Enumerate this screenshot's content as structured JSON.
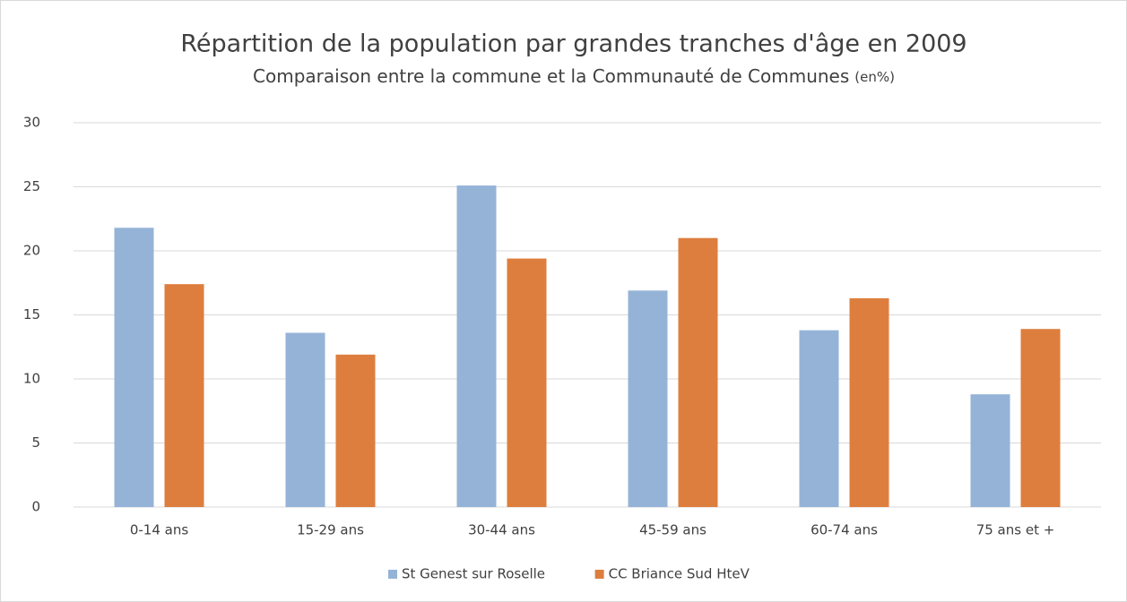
{
  "chart_data": {
    "type": "bar",
    "title": "Répartition de la population par grandes tranches d'âge en 2009",
    "subtitle": "Comparaison entre la commune et la Communauté de Communes",
    "subtitle_unit": "(en%)",
    "categories": [
      "0-14 ans",
      "15-29 ans",
      "30-44 ans",
      "45-59 ans",
      "60-74 ans",
      "75 ans et +"
    ],
    "series": [
      {
        "name": "St Genest sur Roselle",
        "color": "#95b3d7",
        "values": [
          21.8,
          13.6,
          25.1,
          16.9,
          13.8,
          8.8
        ]
      },
      {
        "name": "CC Briance Sud HteV",
        "color": "#dd7e3e",
        "values": [
          17.4,
          11.9,
          19.4,
          21.0,
          16.3,
          13.9
        ]
      }
    ],
    "ylim": [
      0,
      30
    ],
    "yticks": [
      0,
      5,
      10,
      15,
      20,
      25,
      30
    ],
    "grid": true,
    "legend": "bottom"
  }
}
